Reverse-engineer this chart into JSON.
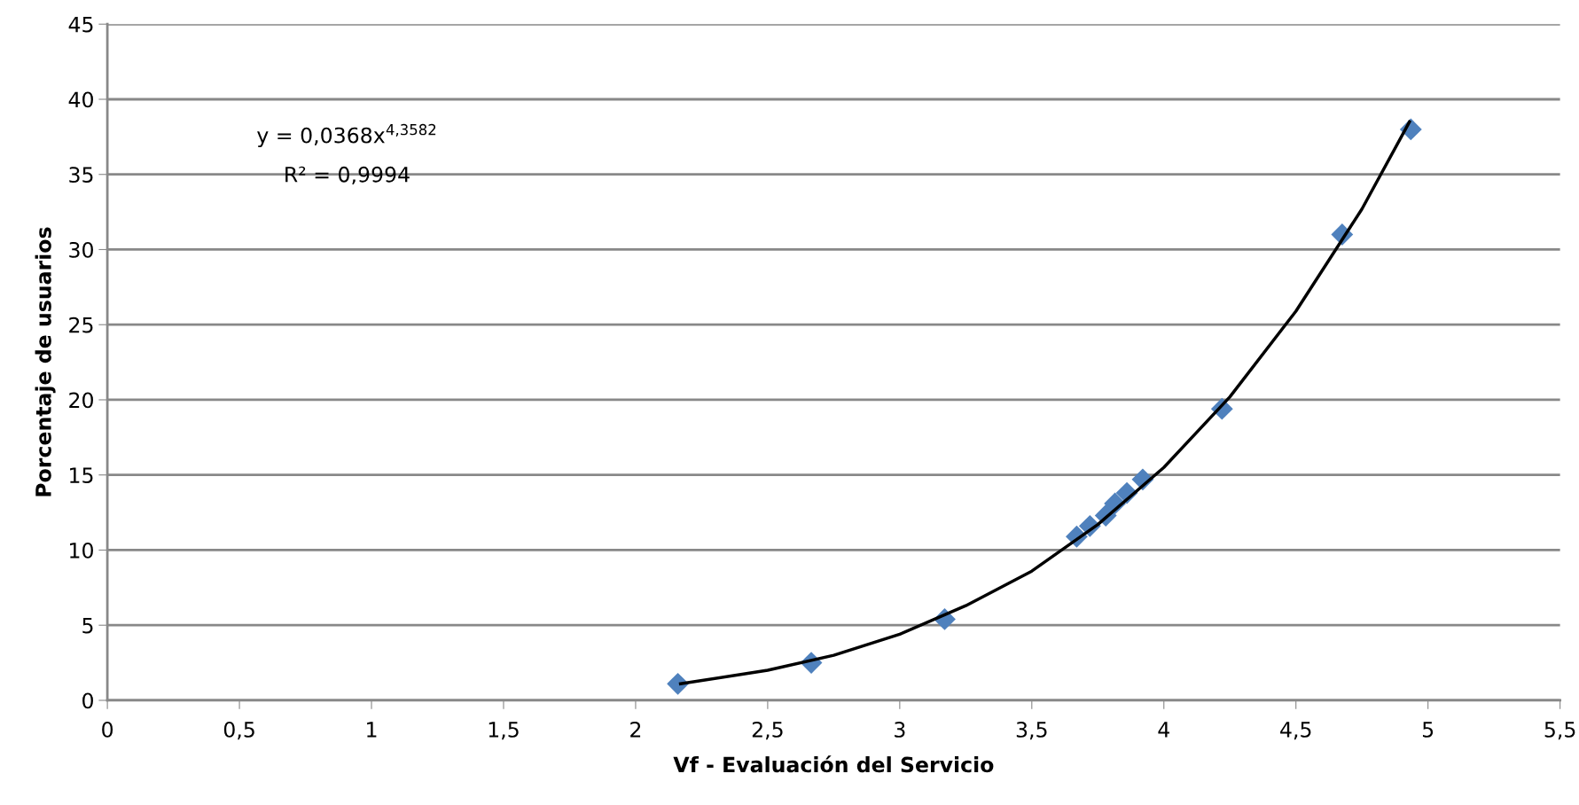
{
  "chart_data": {
    "type": "scatter",
    "xlabel": "Vf - Evaluación del Servicio",
    "ylabel": "Porcentaje de usuarios",
    "xlim": [
      0,
      5.5
    ],
    "xticks": [
      0,
      {
        "value": 0.5,
        "label": "0,5"
      },
      1,
      {
        "value": 1.5,
        "label": "1,5"
      },
      2,
      {
        "value": 2.5,
        "label": "2,5"
      },
      3,
      {
        "value": 3.5,
        "label": "3,5"
      },
      4,
      {
        "value": 4.5,
        "label": "4,5"
      },
      5,
      {
        "value": 5.5,
        "label": "5,5"
      }
    ],
    "ylim": [
      0,
      45
    ],
    "yticks": [
      0,
      5,
      10,
      15,
      20,
      25,
      30,
      35,
      40,
      45
    ],
    "grid": "y",
    "series": [
      {
        "color": "#4f81bd",
        "marker": "diamond",
        "x": [
          2.16,
          2.665,
          3.17,
          3.67,
          3.72,
          3.78,
          3.815,
          3.86,
          3.92,
          4.22,
          4.675,
          4.935
        ],
        "values": [
          1.1,
          2.5,
          5.4,
          10.9,
          11.6,
          12.3,
          13.1,
          13.8,
          14.7,
          19.4,
          31.0,
          38.0
        ]
      },
      {
        "type": "line",
        "color": "#000000",
        "line_style": "solid",
        "marker": "none",
        "x": [
          2.17,
          2.5,
          2.75,
          3.0,
          3.25,
          3.5,
          3.75,
          4.0,
          4.25,
          4.5,
          4.75,
          4.93
        ],
        "values": [
          1.1,
          2.0,
          3.0,
          4.4,
          6.3,
          8.6,
          11.7,
          15.5,
          20.2,
          25.9,
          32.7,
          38.5
        ]
      }
    ],
    "annotations": [
      "y = 0,0368x$^{4,3582}$",
      "R² = 0,9994"
    ]
  }
}
